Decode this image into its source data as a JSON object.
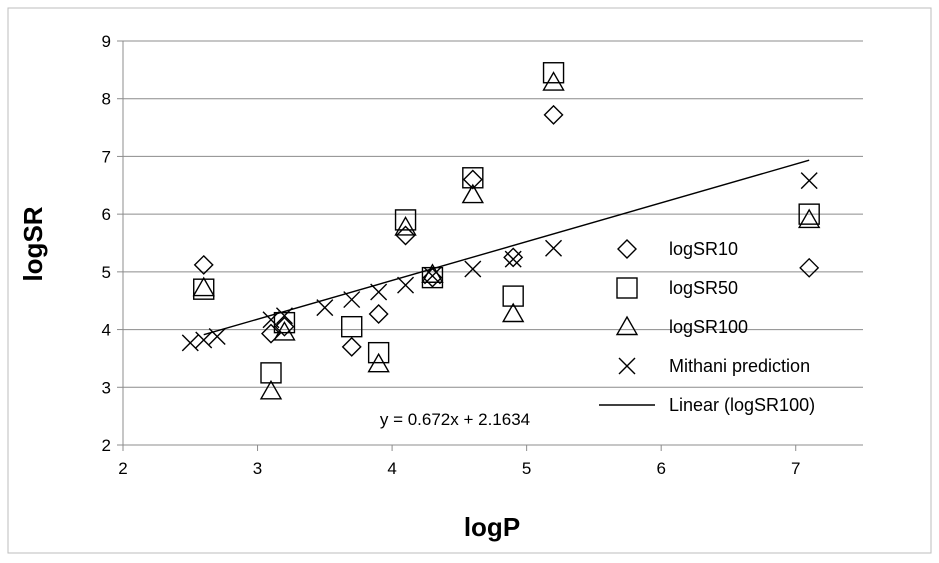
{
  "chart_data": {
    "type": "scatter",
    "title": "",
    "xlabel": "logP",
    "ylabel": "logSR",
    "xlim": [
      2,
      7.5
    ],
    "ylim": [
      2,
      9
    ],
    "xticks": [
      2,
      3,
      4,
      5,
      6,
      7
    ],
    "yticks": [
      2,
      3,
      4,
      5,
      6,
      7,
      8,
      9
    ],
    "grid": "horizontal",
    "legend_position": "right",
    "series": [
      {
        "name": "logSR10",
        "marker": "diamond",
        "points": [
          [
            2.6,
            5.12
          ],
          [
            3.1,
            3.93
          ],
          [
            3.2,
            4.05
          ],
          [
            3.7,
            3.7
          ],
          [
            3.9,
            4.27
          ],
          [
            4.1,
            5.63
          ],
          [
            4.3,
            4.9
          ],
          [
            4.6,
            6.6
          ],
          [
            4.9,
            5.25
          ],
          [
            5.2,
            7.72
          ],
          [
            7.1,
            5.07
          ]
        ]
      },
      {
        "name": "logSR50",
        "marker": "square",
        "points": [
          [
            2.6,
            4.7
          ],
          [
            3.1,
            3.25
          ],
          [
            3.2,
            4.12
          ],
          [
            3.7,
            4.05
          ],
          [
            3.9,
            3.6
          ],
          [
            4.1,
            5.9
          ],
          [
            4.3,
            4.9
          ],
          [
            4.6,
            6.63
          ],
          [
            4.9,
            4.58
          ],
          [
            5.2,
            8.45
          ],
          [
            7.1,
            6.0
          ]
        ]
      },
      {
        "name": "logSR100",
        "marker": "triangle",
        "points": [
          [
            2.6,
            4.72
          ],
          [
            3.1,
            2.93
          ],
          [
            3.2,
            3.95
          ],
          [
            3.9,
            3.4
          ],
          [
            4.1,
            5.77
          ],
          [
            4.3,
            4.95
          ],
          [
            4.6,
            6.33
          ],
          [
            4.9,
            4.27
          ],
          [
            5.2,
            8.28
          ],
          [
            7.1,
            5.9
          ]
        ]
      },
      {
        "name": "Mithani prediction",
        "marker": "x",
        "points": [
          [
            2.5,
            3.77
          ],
          [
            2.6,
            3.82
          ],
          [
            2.7,
            3.88
          ],
          [
            3.1,
            4.17
          ],
          [
            3.2,
            4.24
          ],
          [
            3.5,
            4.38
          ],
          [
            3.7,
            4.52
          ],
          [
            3.9,
            4.65
          ],
          [
            4.1,
            4.77
          ],
          [
            4.3,
            4.93
          ],
          [
            4.6,
            5.05
          ],
          [
            4.9,
            5.22
          ],
          [
            5.2,
            5.41
          ],
          [
            7.1,
            6.58
          ]
        ]
      }
    ],
    "trendline": {
      "name": "Linear (logSR100)",
      "slope": 0.672,
      "intercept": 2.1634,
      "x_range": [
        2.6,
        7.1
      ],
      "equation": "y = 0.672x + 2.1634"
    }
  }
}
